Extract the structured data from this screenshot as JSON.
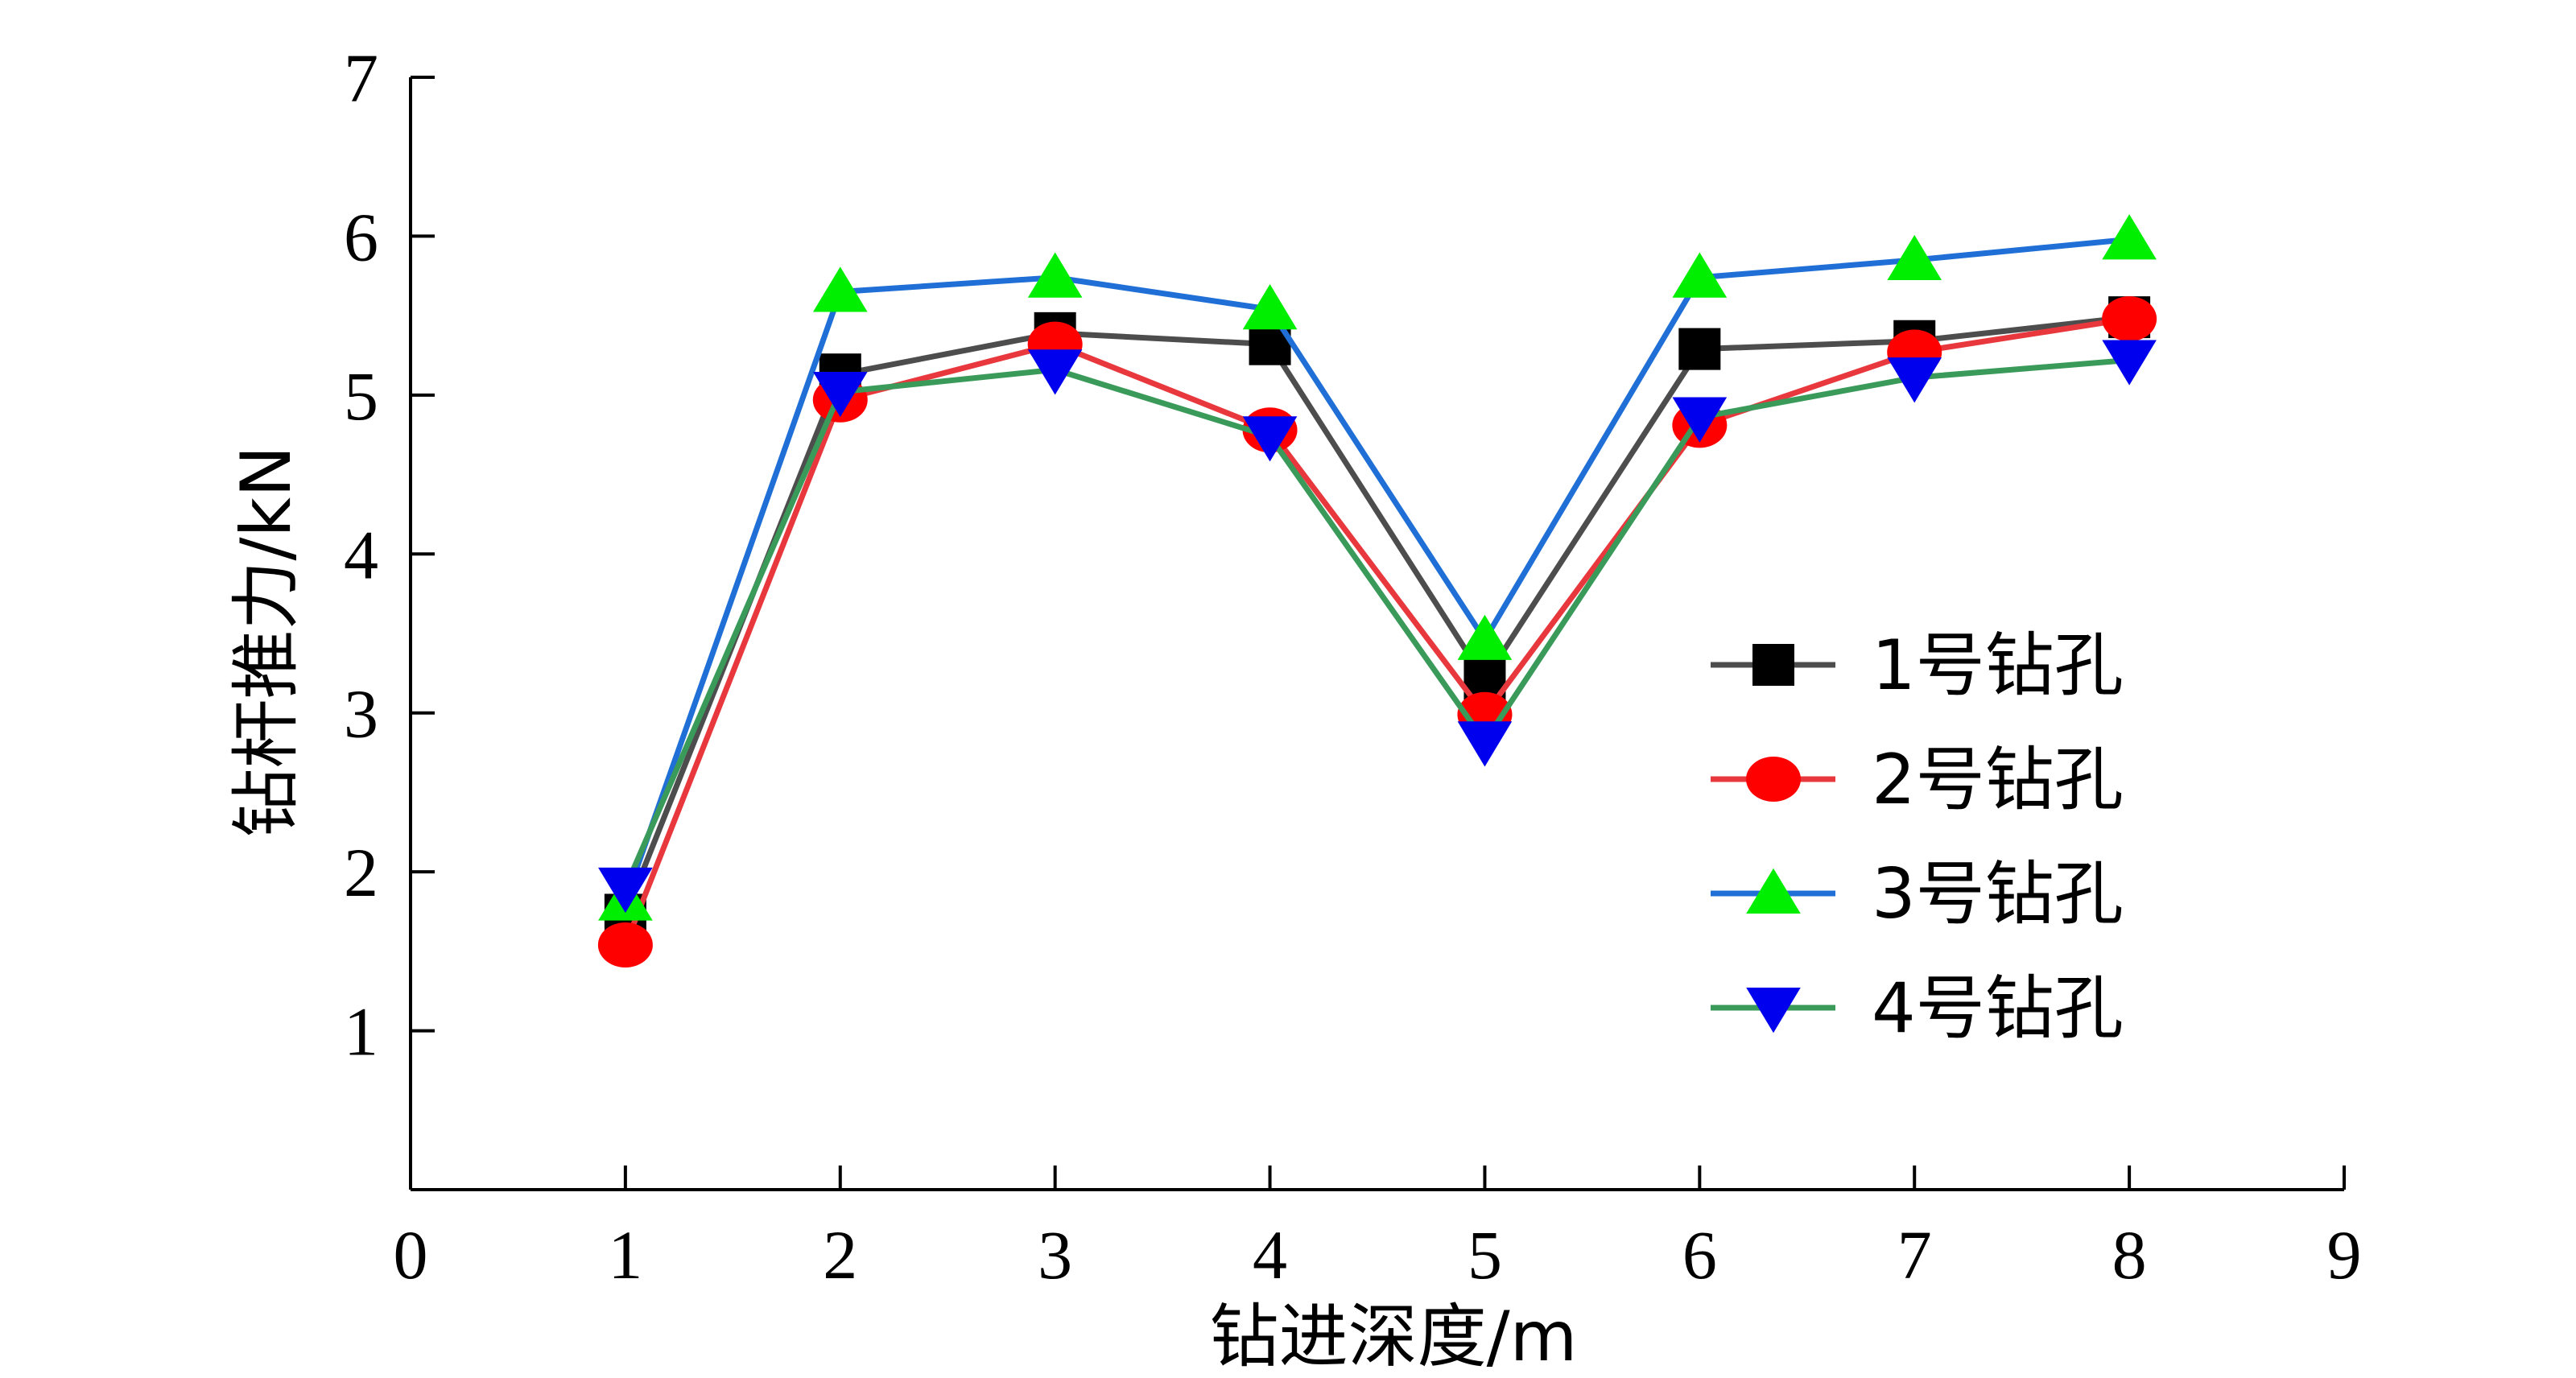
{
  "chart_data": {
    "type": "line",
    "xlabel": "钻进深度/m",
    "ylabel": "钻杆推力/kN",
    "xlim": [
      0,
      9
    ],
    "ylim": [
      0,
      7
    ],
    "x_ticks": [
      0,
      1,
      2,
      3,
      4,
      5,
      6,
      7,
      8,
      9
    ],
    "y_ticks": [
      1,
      2,
      3,
      4,
      5,
      6,
      7
    ],
    "grid": false,
    "legend_position": "right",
    "x": [
      1,
      2,
      3,
      4,
      5,
      6,
      7,
      8
    ],
    "series": [
      {
        "name": "1号钻孔",
        "line_color": "#4d4d4d",
        "marker_color": "#000000",
        "marker": "square",
        "values": [
          1.73,
          5.13,
          5.39,
          5.32,
          3.21,
          5.29,
          5.34,
          5.49
        ]
      },
      {
        "name": "2号钻孔",
        "line_color": "#e8383d",
        "marker_color": "#ff0000",
        "marker": "circle",
        "values": [
          1.54,
          4.97,
          5.32,
          4.78,
          2.99,
          4.81,
          5.27,
          5.48
        ]
      },
      {
        "name": "3号钻孔",
        "line_color": "#1f6fd6",
        "marker_color": "#00ee00",
        "marker": "triangle-up",
        "values": [
          1.82,
          5.65,
          5.74,
          5.54,
          3.46,
          5.74,
          5.85,
          5.98
        ]
      },
      {
        "name": "4号钻孔",
        "line_color": "#3a9a5a",
        "marker_color": "#0000ee",
        "marker": "triangle-down",
        "values": [
          1.9,
          5.02,
          5.16,
          4.74,
          2.82,
          4.86,
          5.11,
          5.22
        ]
      }
    ]
  }
}
